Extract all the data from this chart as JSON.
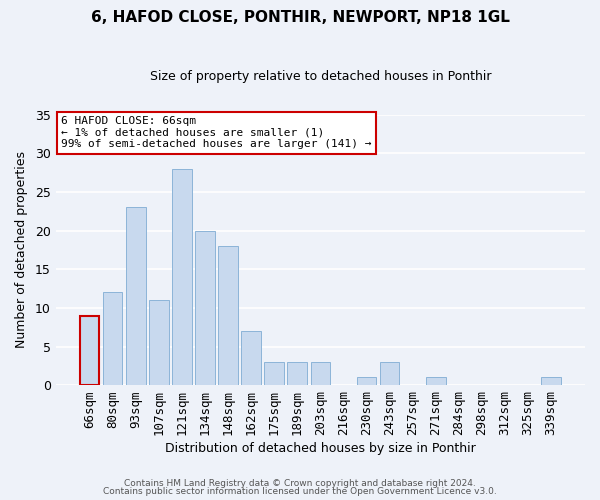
{
  "title": "6, HAFOD CLOSE, PONTHIR, NEWPORT, NP18 1GL",
  "subtitle": "Size of property relative to detached houses in Ponthir",
  "xlabel": "Distribution of detached houses by size in Ponthir",
  "ylabel": "Number of detached properties",
  "bar_color": "#c8d9ee",
  "bar_edge_color": "#8cb4d8",
  "categories": [
    "66sqm",
    "80sqm",
    "93sqm",
    "107sqm",
    "121sqm",
    "134sqm",
    "148sqm",
    "162sqm",
    "175sqm",
    "189sqm",
    "203sqm",
    "216sqm",
    "230sqm",
    "243sqm",
    "257sqm",
    "271sqm",
    "284sqm",
    "298sqm",
    "312sqm",
    "325sqm",
    "339sqm"
  ],
  "values": [
    9,
    12,
    23,
    11,
    28,
    20,
    18,
    7,
    3,
    3,
    3,
    0,
    1,
    3,
    0,
    1,
    0,
    0,
    0,
    0,
    1
  ],
  "ylim": [
    0,
    35
  ],
  "yticks": [
    0,
    5,
    10,
    15,
    20,
    25,
    30,
    35
  ],
  "annotation_lines": [
    "6 HAFOD CLOSE: 66sqm",
    "← 1% of detached houses are smaller (1)",
    "99% of semi-detached houses are larger (141) →"
  ],
  "footer_line1": "Contains HM Land Registry data © Crown copyright and database right 2024.",
  "footer_line2": "Contains public sector information licensed under the Open Government Licence v3.0.",
  "highlight_bar_index": 0,
  "highlight_bar_edge_color": "#cc0000",
  "background_color": "#eef2f9",
  "grid_color": "#ffffff",
  "ann_box_edge_color": "#cc0000"
}
